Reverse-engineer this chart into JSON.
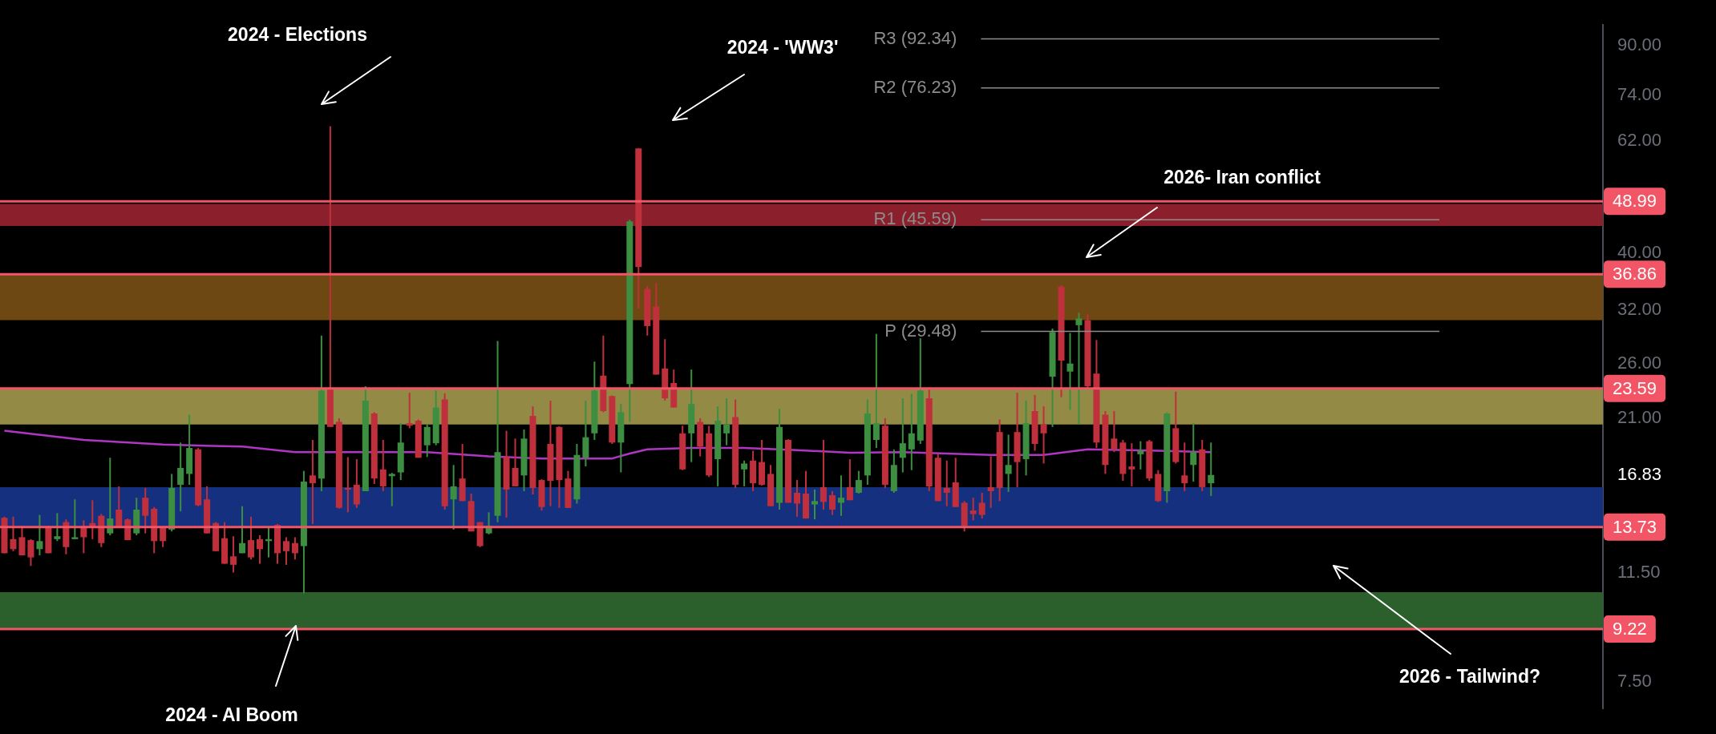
{
  "chart_data": {
    "type": "candlestick",
    "tick_labels": "y",
    "log": true,
    "categories": [
      null,
      null,
      null,
      null,
      null,
      null,
      null,
      null,
      null,
      null,
      null,
      null,
      null,
      null,
      null,
      null,
      null,
      null,
      null,
      null,
      null,
      null,
      null,
      null,
      null,
      null,
      null,
      null,
      null,
      null,
      null,
      null,
      null,
      null,
      null,
      null,
      null,
      null,
      null,
      null,
      null,
      null,
      null,
      null,
      null,
      null,
      null,
      null,
      null,
      null,
      null,
      null,
      null,
      null,
      null,
      null,
      null,
      null,
      null,
      null,
      null,
      null,
      null,
      null,
      null,
      null,
      null,
      null,
      null,
      null,
      null,
      null,
      null,
      null,
      null,
      null,
      null,
      null,
      null,
      null,
      null,
      null,
      null,
      null,
      null,
      null,
      null,
      null,
      null,
      null,
      null,
      null,
      null,
      null,
      null,
      null,
      null,
      null,
      null,
      null,
      null,
      null,
      null,
      null,
      null,
      null,
      null,
      null,
      null,
      null,
      null,
      null,
      null,
      null,
      null,
      null,
      null,
      null,
      null,
      null,
      null,
      null,
      null,
      null,
      null,
      null,
      null,
      null,
      null,
      null,
      null,
      null,
      null,
      null,
      null,
      null,
      null,
      null,
      null,
      null,
      null,
      null,
      null,
      null,
      null,
      null,
      null,
      null,
      null,
      null,
      null,
      null,
      null,
      null,
      null,
      null,
      null,
      null,
      null,
      null,
      null,
      null,
      null,
      null,
      null,
      null,
      null,
      null,
      null,
      null,
      null,
      null,
      null,
      null,
      null,
      null,
      null,
      null,
      null,
      null,
      null,
      null
    ],
    "ohlc": [
      [
        14.24,
        14.3,
        12.4,
        12.4
      ],
      [
        13.1,
        14.3,
        12.5,
        12.6
      ],
      [
        13.2,
        13.8,
        12.3,
        12.3
      ],
      [
        13.05,
        13.1,
        11.8,
        12.2
      ],
      [
        12.6,
        14.4,
        12.3,
        13.0
      ],
      [
        13.75,
        13.8,
        12.4,
        12.4
      ],
      [
        13.1,
        14.5,
        13.0,
        13.25
      ],
      [
        14.0,
        14.15,
        12.35,
        12.7
      ],
      [
        13.1,
        15.3,
        13.1,
        13.2
      ],
      [
        13.75,
        14.1,
        12.4,
        13.2
      ],
      [
        13.95,
        15.25,
        13.1,
        13.75
      ],
      [
        14.35,
        14.45,
        12.7,
        12.9
      ],
      [
        13.4,
        18.0,
        13.3,
        14.2
      ],
      [
        14.7,
        16.1,
        13.7,
        13.7
      ],
      [
        14.15,
        14.2,
        13.05,
        13.05
      ],
      [
        13.4,
        15.4,
        13.3,
        14.7
      ],
      [
        15.4,
        16.0,
        13.4,
        14.35
      ],
      [
        14.75,
        14.85,
        12.4,
        13.0
      ],
      [
        13.7,
        13.7,
        12.7,
        13.0
      ],
      [
        13.6,
        16.9,
        13.5,
        16.0
      ],
      [
        16.2,
        19.1,
        14.6,
        17.3
      ],
      [
        16.9,
        21.3,
        16.2,
        18.7
      ],
      [
        18.6,
        18.7,
        14.9,
        14.95
      ],
      [
        15.3,
        16.1,
        13.4,
        13.4
      ],
      [
        13.95,
        14.0,
        12.5,
        12.5
      ],
      [
        13.15,
        14.0,
        11.9,
        11.9
      ],
      [
        12.25,
        13.25,
        11.5,
        11.85
      ],
      [
        12.4,
        14.9,
        12.4,
        12.9
      ],
      [
        13.05,
        14.3,
        12.1,
        12.2
      ],
      [
        13.1,
        13.3,
        11.9,
        12.6
      ],
      [
        13.0,
        13.75,
        12.2,
        13.1
      ],
      [
        13.85,
        13.9,
        11.9,
        12.4
      ],
      [
        13.0,
        13.2,
        11.85,
        12.5
      ],
      [
        12.9,
        13.2,
        12.1,
        12.4
      ],
      [
        12.75,
        17.1,
        10.6,
        16.4
      ],
      [
        16.8,
        19.3,
        13.9,
        16.3
      ],
      [
        16.6,
        29.0,
        15.8,
        23.4
      ],
      [
        23.5,
        65.7,
        20.3,
        20.3
      ],
      [
        20.7,
        21.0,
        14.76,
        14.8
      ],
      [
        16.0,
        18.05,
        14.55,
        15.9
      ],
      [
        16.2,
        17.9,
        14.8,
        15.0
      ],
      [
        15.8,
        23.8,
        15.8,
        22.5
      ],
      [
        21.4,
        21.5,
        16.25,
        16.6
      ],
      [
        17.2,
        19.3,
        15.8,
        16.1
      ],
      [
        16.75,
        16.97,
        14.9,
        16.9
      ],
      [
        17.0,
        20.6,
        16.5,
        19.1
      ],
      [
        20.6,
        23.2,
        20.2,
        20.4
      ],
      [
        20.8,
        20.9,
        18.0,
        18.0
      ],
      [
        18.9,
        20.5,
        18.05,
        20.3
      ],
      [
        19.05,
        23.4,
        18.9,
        21.9
      ],
      [
        22.6,
        23.15,
        14.7,
        14.9
      ],
      [
        15.3,
        17.5,
        13.6,
        16.1
      ],
      [
        16.6,
        19.0,
        15.2,
        15.2
      ],
      [
        15.2,
        15.65,
        13.5,
        13.5
      ],
      [
        14.0,
        14.0,
        12.7,
        12.75
      ],
      [
        13.4,
        14.55,
        13.35,
        13.8
      ],
      [
        14.35,
        28.4,
        14.0,
        18.4
      ],
      [
        18.05,
        20.0,
        14.25,
        15.9
      ],
      [
        17.3,
        19.4,
        16.1,
        16.1
      ],
      [
        16.8,
        20.1,
        15.8,
        19.4
      ],
      [
        21.2,
        22.0,
        15.6,
        16.0
      ],
      [
        16.5,
        16.55,
        14.65,
        14.85
      ],
      [
        19.0,
        22.5,
        14.9,
        16.45
      ],
      [
        20.3,
        20.35,
        14.8,
        16.5
      ],
      [
        16.6,
        17.1,
        14.8,
        14.8
      ],
      [
        15.3,
        19.0,
        15.05,
        18.2
      ],
      [
        18.0,
        22.5,
        17.4,
        19.5
      ],
      [
        19.8,
        26.2,
        19.3,
        23.4
      ],
      [
        24.8,
        29.0,
        21.5,
        21.6
      ],
      [
        22.9,
        22.95,
        19.0,
        19.1
      ],
      [
        19.1,
        22.2,
        17.0,
        21.5
      ],
      [
        24.0,
        45.6,
        20.7,
        45.3
      ],
      [
        60.2,
        60.3,
        32.2,
        37.9
      ],
      [
        34.8,
        35.2,
        29.0,
        30.1
      ],
      [
        32.5,
        35.6,
        24.9,
        24.9
      ],
      [
        25.5,
        28.6,
        22.5,
        22.7
      ],
      [
        24.1,
        25.4,
        21.9,
        21.9
      ],
      [
        19.8,
        20.4,
        17.15,
        17.2
      ],
      [
        19.8,
        25.4,
        17.7,
        22.2
      ],
      [
        20.7,
        21.0,
        18.1,
        18.8
      ],
      [
        19.8,
        20.4,
        16.7,
        16.8
      ],
      [
        17.9,
        22.0,
        16.1,
        20.8
      ],
      [
        19.8,
        22.7,
        18.9,
        20.5
      ],
      [
        21.1,
        22.6,
        16.0,
        16.2
      ],
      [
        17.2,
        17.8,
        16.1,
        17.6
      ],
      [
        17.8,
        18.5,
        15.8,
        16.3
      ],
      [
        17.7,
        19.3,
        16.15,
        16.2
      ],
      [
        16.9,
        17.5,
        14.9,
        14.9
      ],
      [
        15.1,
        21.8,
        14.7,
        20.3
      ],
      [
        19.3,
        19.35,
        15.1,
        15.1
      ],
      [
        15.7,
        16.5,
        14.3,
        15.05
      ],
      [
        15.65,
        17.1,
        14.2,
        14.2
      ],
      [
        15.0,
        15.9,
        14.15,
        15.2
      ],
      [
        16.05,
        19.3,
        14.7,
        15.15
      ],
      [
        15.55,
        15.8,
        14.4,
        14.7
      ],
      [
        15.1,
        16.8,
        14.35,
        15.4
      ],
      [
        16.05,
        17.9,
        15.25,
        15.25
      ],
      [
        15.7,
        17.1,
        15.65,
        16.5
      ],
      [
        16.8,
        22.6,
        16.2,
        21.4
      ],
      [
        19.3,
        29.2,
        18.7,
        20.6
      ],
      [
        20.4,
        21.0,
        16.0,
        16.2
      ],
      [
        15.8,
        18.6,
        15.7,
        17.5
      ],
      [
        18.0,
        22.7,
        17.0,
        19.05
      ],
      [
        18.6,
        23.1,
        17.15,
        19.8
      ],
      [
        19.25,
        28.7,
        19.0,
        23.4
      ],
      [
        22.7,
        23.6,
        15.8,
        16.1
      ],
      [
        18.0,
        18.3,
        15.2,
        15.2
      ],
      [
        16.0,
        17.8,
        14.9,
        15.7
      ],
      [
        16.35,
        18.0,
        14.85,
        14.85
      ],
      [
        15.1,
        15.2,
        13.5,
        13.8
      ],
      [
        14.65,
        15.4,
        14.1,
        14.45
      ],
      [
        15.1,
        15.7,
        14.2,
        14.4
      ],
      [
        16.05,
        18.1,
        14.8,
        15.8
      ],
      [
        19.9,
        20.9,
        15.2,
        16.0
      ],
      [
        16.9,
        19.7,
        15.75,
        17.5
      ],
      [
        19.9,
        23.2,
        16.05,
        17.7
      ],
      [
        17.9,
        22.5,
        16.8,
        20.6
      ],
      [
        21.6,
        23.0,
        18.5,
        19.0
      ],
      [
        20.5,
        22.0,
        17.6,
        19.8
      ],
      [
        24.7,
        29.8,
        20.3,
        29.4
      ],
      [
        35.1,
        35.3,
        22.8,
        26.3
      ],
      [
        25.2,
        29.3,
        21.7,
        26.0
      ],
      [
        30.2,
        31.7,
        20.5,
        31.0
      ],
      [
        30.8,
        31.5,
        23.6,
        23.8
      ],
      [
        25.0,
        28.5,
        18.7,
        19.1
      ],
      [
        21.3,
        21.6,
        16.9,
        17.5
      ],
      [
        19.4,
        21.6,
        18.4,
        18.6
      ],
      [
        19.1,
        19.3,
        16.45,
        16.9
      ],
      [
        17.4,
        19.05,
        16.1,
        17.2
      ],
      [
        18.25,
        19.2,
        17.2,
        18.5
      ],
      [
        19.2,
        19.3,
        16.45,
        16.6
      ],
      [
        16.9,
        17.15,
        15.15,
        15.2
      ],
      [
        15.8,
        21.5,
        15.1,
        21.4
      ],
      [
        20.2,
        23.3,
        17.6,
        17.7
      ],
      [
        16.8,
        19.1,
        15.8,
        16.3
      ],
      [
        17.5,
        20.6,
        16.4,
        18.4
      ],
      [
        18.6,
        19.3,
        15.8,
        16.05
      ],
      [
        16.3,
        19.1,
        15.5,
        16.83
      ],
      null,
      null,
      null,
      null,
      null,
      null,
      null,
      null,
      null,
      null,
      null,
      null,
      null,
      null,
      null,
      null,
      null,
      null,
      null,
      null,
      null,
      null,
      null,
      null,
      null,
      null,
      null,
      null,
      null,
      null,
      null,
      null,
      null,
      null,
      null,
      null,
      null,
      null,
      null,
      null,
      null,
      null,
      null,
      null
    ],
    "colors": [
      "#c0303c",
      "#c0303c",
      "#c0303c",
      "#c0303c",
      "#3e8e41",
      "#c0303c",
      "#3e8e41",
      "#c0303c",
      "#3e8e41",
      "#c0303c",
      "#c0303c",
      "#c0303c",
      "#3e8e41",
      "#c0303c",
      "#c0303c",
      "#3e8e41",
      "#c0303c",
      "#c0303c",
      "#c0303c",
      "#3e8e41",
      "#3e8e41",
      "#3e8e41",
      "#c0303c",
      "#c0303c",
      "#c0303c",
      "#c0303c",
      "#c0303c",
      "#3e8e41",
      "#c0303c",
      "#c0303c",
      "#3e8e41",
      "#c0303c",
      "#c0303c",
      "#c0303c",
      "#3e8e41",
      "#c0303c",
      "#3e8e41",
      "#c0303c",
      "#c0303c",
      "#c0303c",
      "#c0303c",
      "#3e8e41",
      "#c0303c",
      "#c0303c",
      "#3e8e41",
      "#3e8e41",
      "#c0303c",
      "#c0303c",
      "#3e8e41",
      "#3e8e41",
      "#c0303c",
      "#3e8e41",
      "#c0303c",
      "#c0303c",
      "#c0303c",
      "#3e8e41",
      "#3e8e41",
      "#c0303c",
      "#c0303c",
      "#3e8e41",
      "#c0303c",
      "#c0303c",
      "#c0303c",
      "#c0303c",
      "#c0303c",
      "#3e8e41",
      "#3e8e41",
      "#3e8e41",
      "#c0303c",
      "#c0303c",
      "#3e8e41",
      "#3e8e41",
      "#c0303c",
      "#c0303c",
      "#c0303c",
      "#c0303c",
      "#c0303c",
      "#c0303c",
      "#3e8e41",
      "#c0303c",
      "#c0303c",
      "#3e8e41",
      "#3e8e41",
      "#c0303c",
      "#3e8e41",
      "#c0303c",
      "#c0303c",
      "#c0303c",
      "#3e8e41",
      "#c0303c",
      "#c0303c",
      "#c0303c",
      "#3e8e41",
      "#c0303c",
      "#c0303c",
      "#3e8e41",
      "#c0303c",
      "#3e8e41",
      "#3e8e41",
      "#3e8e41",
      "#c0303c",
      "#3e8e41",
      "#3e8e41",
      "#3e8e41",
      "#3e8e41",
      "#c0303c",
      "#c0303c",
      "#c0303c",
      "#c0303c",
      "#c0303c",
      "#c0303c",
      "#c0303c",
      "#c0303c",
      "#c0303c",
      "#3e8e41",
      "#c0303c",
      "#3e8e41",
      "#c0303c",
      "#c0303c",
      "#3e8e41",
      "#c0303c",
      "#3e8e41",
      "#3e8e41",
      "#c0303c",
      "#c0303c",
      "#c0303c",
      "#c0303c",
      "#c0303c",
      "#c0303c",
      "#3e8e41",
      "#c0303c",
      "#c0303c",
      "#3e8e41",
      "#c0303c",
      "#c0303c",
      "#3e8e41",
      "#c0303c",
      "#3e8e41",
      null,
      null,
      null,
      null,
      null,
      null,
      null,
      null,
      null,
      null,
      null,
      null,
      null,
      null,
      null,
      null,
      null,
      null,
      null,
      null,
      null,
      null,
      null,
      null,
      null,
      null,
      null,
      null,
      null,
      null,
      null,
      null,
      null,
      null,
      null,
      null,
      null,
      null,
      null,
      null,
      null,
      null,
      null,
      null
    ],
    "series": [
      {
        "type": "line",
        "color": "#b035c4",
        "values": [
          20.0,
          null,
          null,
          null,
          null,
          null,
          null,
          null,
          null,
          19.3,
          null,
          null,
          null,
          null,
          null,
          null,
          null,
          null,
          18.95,
          null,
          null,
          null,
          null,
          null,
          null,
          null,
          null,
          18.8,
          null,
          null,
          null,
          null,
          null,
          18.4,
          null,
          null,
          null,
          18.4,
          null,
          null,
          null,
          null,
          null,
          null,
          null,
          null,
          null,
          null,
          18.4,
          null,
          null,
          null,
          null,
          null,
          null,
          18.1,
          null,
          null,
          null,
          null,
          null,
          17.95,
          null,
          null,
          null,
          null,
          17.95,
          null,
          null,
          17.95,
          null,
          18.3,
          null,
          18.6,
          null,
          null,
          null,
          null,
          18.7,
          null,
          null,
          null,
          null,
          null,
          18.7,
          null,
          null,
          null,
          null,
          null,
          18.55,
          null,
          null,
          null,
          null,
          null,
          18.35,
          null,
          null,
          null,
          null,
          null,
          18.4,
          null,
          null,
          null,
          null,
          null,
          null,
          null,
          null,
          null,
          18.2,
          null,
          null,
          null,
          null,
          null,
          18.2,
          null,
          null,
          null,
          null,
          18.6,
          null,
          null,
          null,
          null,
          null,
          null,
          null,
          18.5,
          null,
          null,
          null,
          null,
          null,
          18.4,
          null,
          null,
          null,
          null,
          null,
          null,
          null,
          null,
          null,
          null,
          null,
          null,
          null,
          null,
          null,
          null,
          null,
          null,
          null,
          null,
          null,
          null,
          null,
          null,
          null,
          null,
          null,
          null,
          null,
          null,
          null,
          null,
          null,
          null,
          null,
          null,
          null,
          null,
          null,
          null,
          null,
          null,
          null,
          null
        ]
      }
    ],
    "ylim": [
      6.75,
      97.5
    ],
    "yticks": [
      {
        "value": 7.5,
        "label": "7.50"
      },
      {
        "value": 11.5,
        "label": "11.50"
      },
      16.83,
      {
        "value": 21,
        "label": "21.00"
      },
      {
        "value": 26,
        "label": "26.00"
      },
      {
        "value": 32,
        "label": "32.00"
      },
      {
        "value": 40,
        "label": "40.00"
      },
      {
        "value": 62,
        "label": "62.00"
      },
      {
        "value": 74,
        "label": "74.00"
      },
      {
        "value": 90,
        "label": "90.00"
      }
    ],
    "bands": [
      {
        "axis": "y",
        "from": 44.5,
        "to": 48.5,
        "color": "#8b1f2b"
      },
      {
        "axis": "y",
        "from": 30.8,
        "to": 36.86,
        "color": "#6e4813"
      },
      {
        "axis": "y",
        "from": 20.5,
        "to": 23.59,
        "color": "#938a45"
      },
      {
        "axis": "y",
        "from": 13.73,
        "to": 16.05,
        "color": "#15307e"
      },
      {
        "axis": "y",
        "from": 9.22,
        "to": 10.65,
        "color": "#2b5f2c"
      }
    ],
    "ref_lines": [
      {
        "axis": "y",
        "value": 48.99,
        "label": "48.99",
        "color": "#f25565"
      },
      {
        "axis": "y",
        "value": 36.86,
        "label": "36.86",
        "color": "#f25565"
      },
      {
        "axis": "y",
        "value": 23.59,
        "label": "23.59",
        "color": "#f25565"
      },
      {
        "axis": "y",
        "value": 13.73,
        "label": "13.73",
        "color": "#f25565"
      },
      {
        "axis": "y",
        "value": 9.22,
        "label": "9.22",
        "color": "#f25565"
      },
      {
        "axis": "y",
        "value": 92.34,
        "label": "R3 (92.34)",
        "color": "#8c8c8c"
      },
      {
        "axis": "y",
        "value": 76.23,
        "label": "R2 (76.23)",
        "color": "#8c8c8c"
      },
      {
        "axis": "y",
        "value": 45.59,
        "label": "R1 (45.59)",
        "color": "#8c8c8c"
      },
      {
        "axis": "y",
        "value": 29.48,
        "label": "P (29.48)",
        "color": "#8c8c8c"
      }
    ],
    "annotations": [
      "2024 - Elections",
      "2024 - 'WW3'",
      "2026- Iran conflict",
      "2024 - AI Boom",
      "2026 - Tailwind?"
    ]
  }
}
